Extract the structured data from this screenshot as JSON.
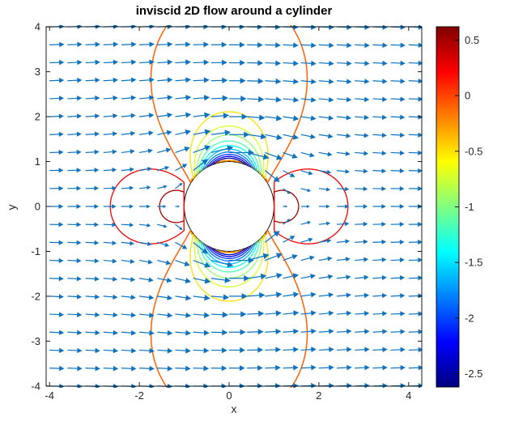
{
  "figure": {
    "title": "inviscid 2D flow around a cylinder",
    "xlabel": "x",
    "ylabel": "y"
  },
  "chart_data": {
    "type": "quiver+contour",
    "description": "Potential (inviscid) flow past a unit-radius cylinder: blue velocity arrows u=1-(x^2-y^2)/r^4, v=-2xy/r^4 on a 0.4-spaced grid, with pressure-coefficient contour lines colored by a jet colormap; white masked disk of radius 1 at origin.",
    "title": "inviscid 2D flow around a cylinder",
    "xlabel": "x",
    "ylabel": "y",
    "xlim": [
      -4.08,
      4.3
    ],
    "ylim": [
      -4,
      4
    ],
    "x_ticks": [
      "-4",
      "-2",
      "0",
      "2",
      "4"
    ],
    "x_tick_values": [
      -4,
      -2,
      0,
      2,
      4
    ],
    "y_ticks": [
      "4",
      "3",
      "2",
      "1",
      "0",
      "-1",
      "-2",
      "-3",
      "-4"
    ],
    "y_tick_values": [
      4,
      3,
      2,
      1,
      0,
      -1,
      -2,
      -3,
      -4
    ],
    "grid": "off",
    "quiver": {
      "color": "#0E72BE",
      "x_start": -4,
      "x_step": 0.4,
      "nx": 22,
      "y_start": -4,
      "y_step": 0.4,
      "ny": 21,
      "mask_radius": 1.02,
      "arrow_scale": 0.33,
      "field": "u = 1 - (x^2 - y^2)/r^4 ; v = -2xy/r^4"
    },
    "cylinder": {
      "radius": 1,
      "fill": "#FFFFFF",
      "stroke": "#000000"
    },
    "contours": {
      "quantity": "pressure coefficient Cp = 1 - |V|^2",
      "levels": [
        {
          "level": 0.5,
          "c": 0.66,
          "kind": "stagnation",
          "color": "#A50000"
        },
        {
          "level": 0.25,
          "c": 0.265,
          "kind": "stagnation",
          "color": "#F40000"
        },
        {
          "level": 0.0,
          "c": -0.09,
          "kind": "sweep",
          "color": "#FF6000"
        },
        {
          "level": -0.25,
          "c": -0.25,
          "kind": "hug",
          "color": "#FF9200"
        },
        {
          "level": -0.5,
          "c": -0.5,
          "kind": "lobe",
          "color": "#FFE100"
        },
        {
          "level": -0.72,
          "c": -0.72,
          "kind": "lobe",
          "color": "#D7FF28"
        },
        {
          "level": -0.94,
          "c": -0.94,
          "kind": "lobe",
          "color": "#93FF6C"
        },
        {
          "level": -1.16,
          "c": -1.16,
          "kind": "lobe",
          "color": "#4EFFB1"
        },
        {
          "level": -1.38,
          "c": -1.38,
          "kind": "lobe",
          "color": "#08FFF7"
        },
        {
          "level": -1.6,
          "c": -1.6,
          "kind": "lobe",
          "color": "#00C2FF"
        },
        {
          "level": -1.82,
          "c": -1.82,
          "kind": "lobe",
          "color": "#007CFF"
        },
        {
          "level": -2.04,
          "c": -2.04,
          "kind": "lobe",
          "color": "#0037FF"
        },
        {
          "level": -2.26,
          "c": -2.26,
          "kind": "lobe",
          "color": "#0000F1"
        },
        {
          "level": -2.48,
          "c": -2.48,
          "kind": "lobe",
          "color": "#0000AB"
        }
      ]
    },
    "colorbar": {
      "cmap": "jet",
      "vmax": 0.62,
      "vmin": -2.62,
      "tick_values": [
        0.5,
        0,
        -0.5,
        -1,
        -1.5,
        -2,
        -2.5
      ],
      "tick_labels": [
        "0.5",
        "0",
        "-0.5",
        "-1",
        "-1.5",
        "-2",
        "-2.5"
      ],
      "gradient": [
        "#800000",
        "#FF0000",
        "#FF8000",
        "#FFFF00",
        "#80FF80",
        "#00FFFF",
        "#0080FF",
        "#0000FF",
        "#000080"
      ]
    }
  }
}
